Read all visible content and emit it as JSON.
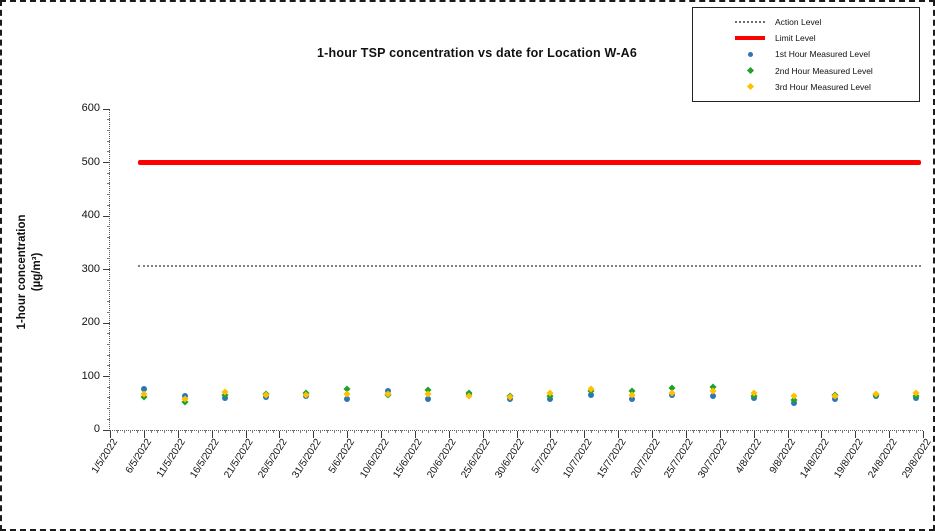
{
  "chart_data": {
    "type": "scatter",
    "title": "1-hour TSP concentration vs date for Location  W-A6",
    "ylabel_line1": "1-hour concentration",
    "ylabel_line2": "(µg/m³)",
    "ylim": [
      0,
      600
    ],
    "y_ticks": [
      0,
      100,
      200,
      300,
      400,
      500,
      600
    ],
    "y_minor_step": 20,
    "x_axis_start": "1/5/2022",
    "x_axis_end": "29/8/2022",
    "x_span_days": 120,
    "x_tick_labels": [
      "1/5/2022",
      "6/5/2022",
      "11/5/2022",
      "16/5/2022",
      "21/5/2022",
      "26/5/2022",
      "31/5/2022",
      "5/6/2022",
      "10/6/2022",
      "15/6/2022",
      "20/6/2022",
      "25/6/2022",
      "30/6/2022",
      "5/7/2022",
      "10/7/2022",
      "15/7/2022",
      "20/7/2022",
      "25/7/2022",
      "30/7/2022",
      "4/8/2022",
      "9/8/2022",
      "14/8/2022",
      "19/8/2022",
      "24/8/2022",
      "29/8/2022"
    ],
    "grid": false,
    "legend_position": "top-right",
    "reference_lines": [
      {
        "name": "Action Level",
        "value": 307,
        "color": "#7f7f7f",
        "style": "dotted",
        "thickness": 2
      },
      {
        "name": "Limit Level",
        "value": 500,
        "color": "#ff0000",
        "style": "solid",
        "thickness": 5
      }
    ],
    "measurement_dates": [
      "6/5/2022",
      "12/5/2022",
      "18/5/2022",
      "24/5/2022",
      "30/5/2022",
      "5/6/2022",
      "11/6/2022",
      "17/6/2022",
      "23/6/2022",
      "29/6/2022",
      "5/7/2022",
      "11/7/2022",
      "17/7/2022",
      "23/7/2022",
      "29/7/2022",
      "4/8/2022",
      "10/8/2022",
      "16/8/2022",
      "22/8/2022",
      "28/8/2022"
    ],
    "series": [
      {
        "name": "1st Hour Measured Level",
        "color": "#2e75b6",
        "marker": "circle",
        "values": [
          76,
          63,
          60,
          61,
          63,
          58,
          72,
          58,
          68,
          58,
          58,
          65,
          58,
          65,
          63,
          60,
          51,
          58,
          64,
          60
        ]
      },
      {
        "name": "2nd Hour Measured Level",
        "color": "#21a12c",
        "marker": "diamond",
        "values": [
          62,
          52,
          66,
          67,
          69,
          76,
          65,
          74,
          70,
          64,
          64,
          73,
          73,
          78,
          80,
          63,
          57,
          66,
          65,
          64
        ]
      },
      {
        "name": "3rd Hour Measured Level",
        "color": "#ffc000",
        "marker": "diamond",
        "values": [
          68,
          58,
          71,
          65,
          66,
          68,
          68,
          67,
          64,
          61,
          70,
          76,
          66,
          70,
          72,
          70,
          63,
          63,
          68,
          70
        ]
      }
    ],
    "legend": {
      "items": [
        {
          "label": "Action Level",
          "swatch": "thin-line",
          "color": "#6e6e6e"
        },
        {
          "label": "Limit Level",
          "swatch": "thick-line",
          "color": "#ff0000"
        },
        {
          "label": "1st Hour Measured Level",
          "swatch": "circle",
          "color": "#2e75b6"
        },
        {
          "label": "2nd Hour Measured Level",
          "swatch": "diamond",
          "color": "#21a12c"
        },
        {
          "label": "3rd Hour Measured Level",
          "swatch": "diamond",
          "color": "#ffc000"
        }
      ]
    }
  }
}
